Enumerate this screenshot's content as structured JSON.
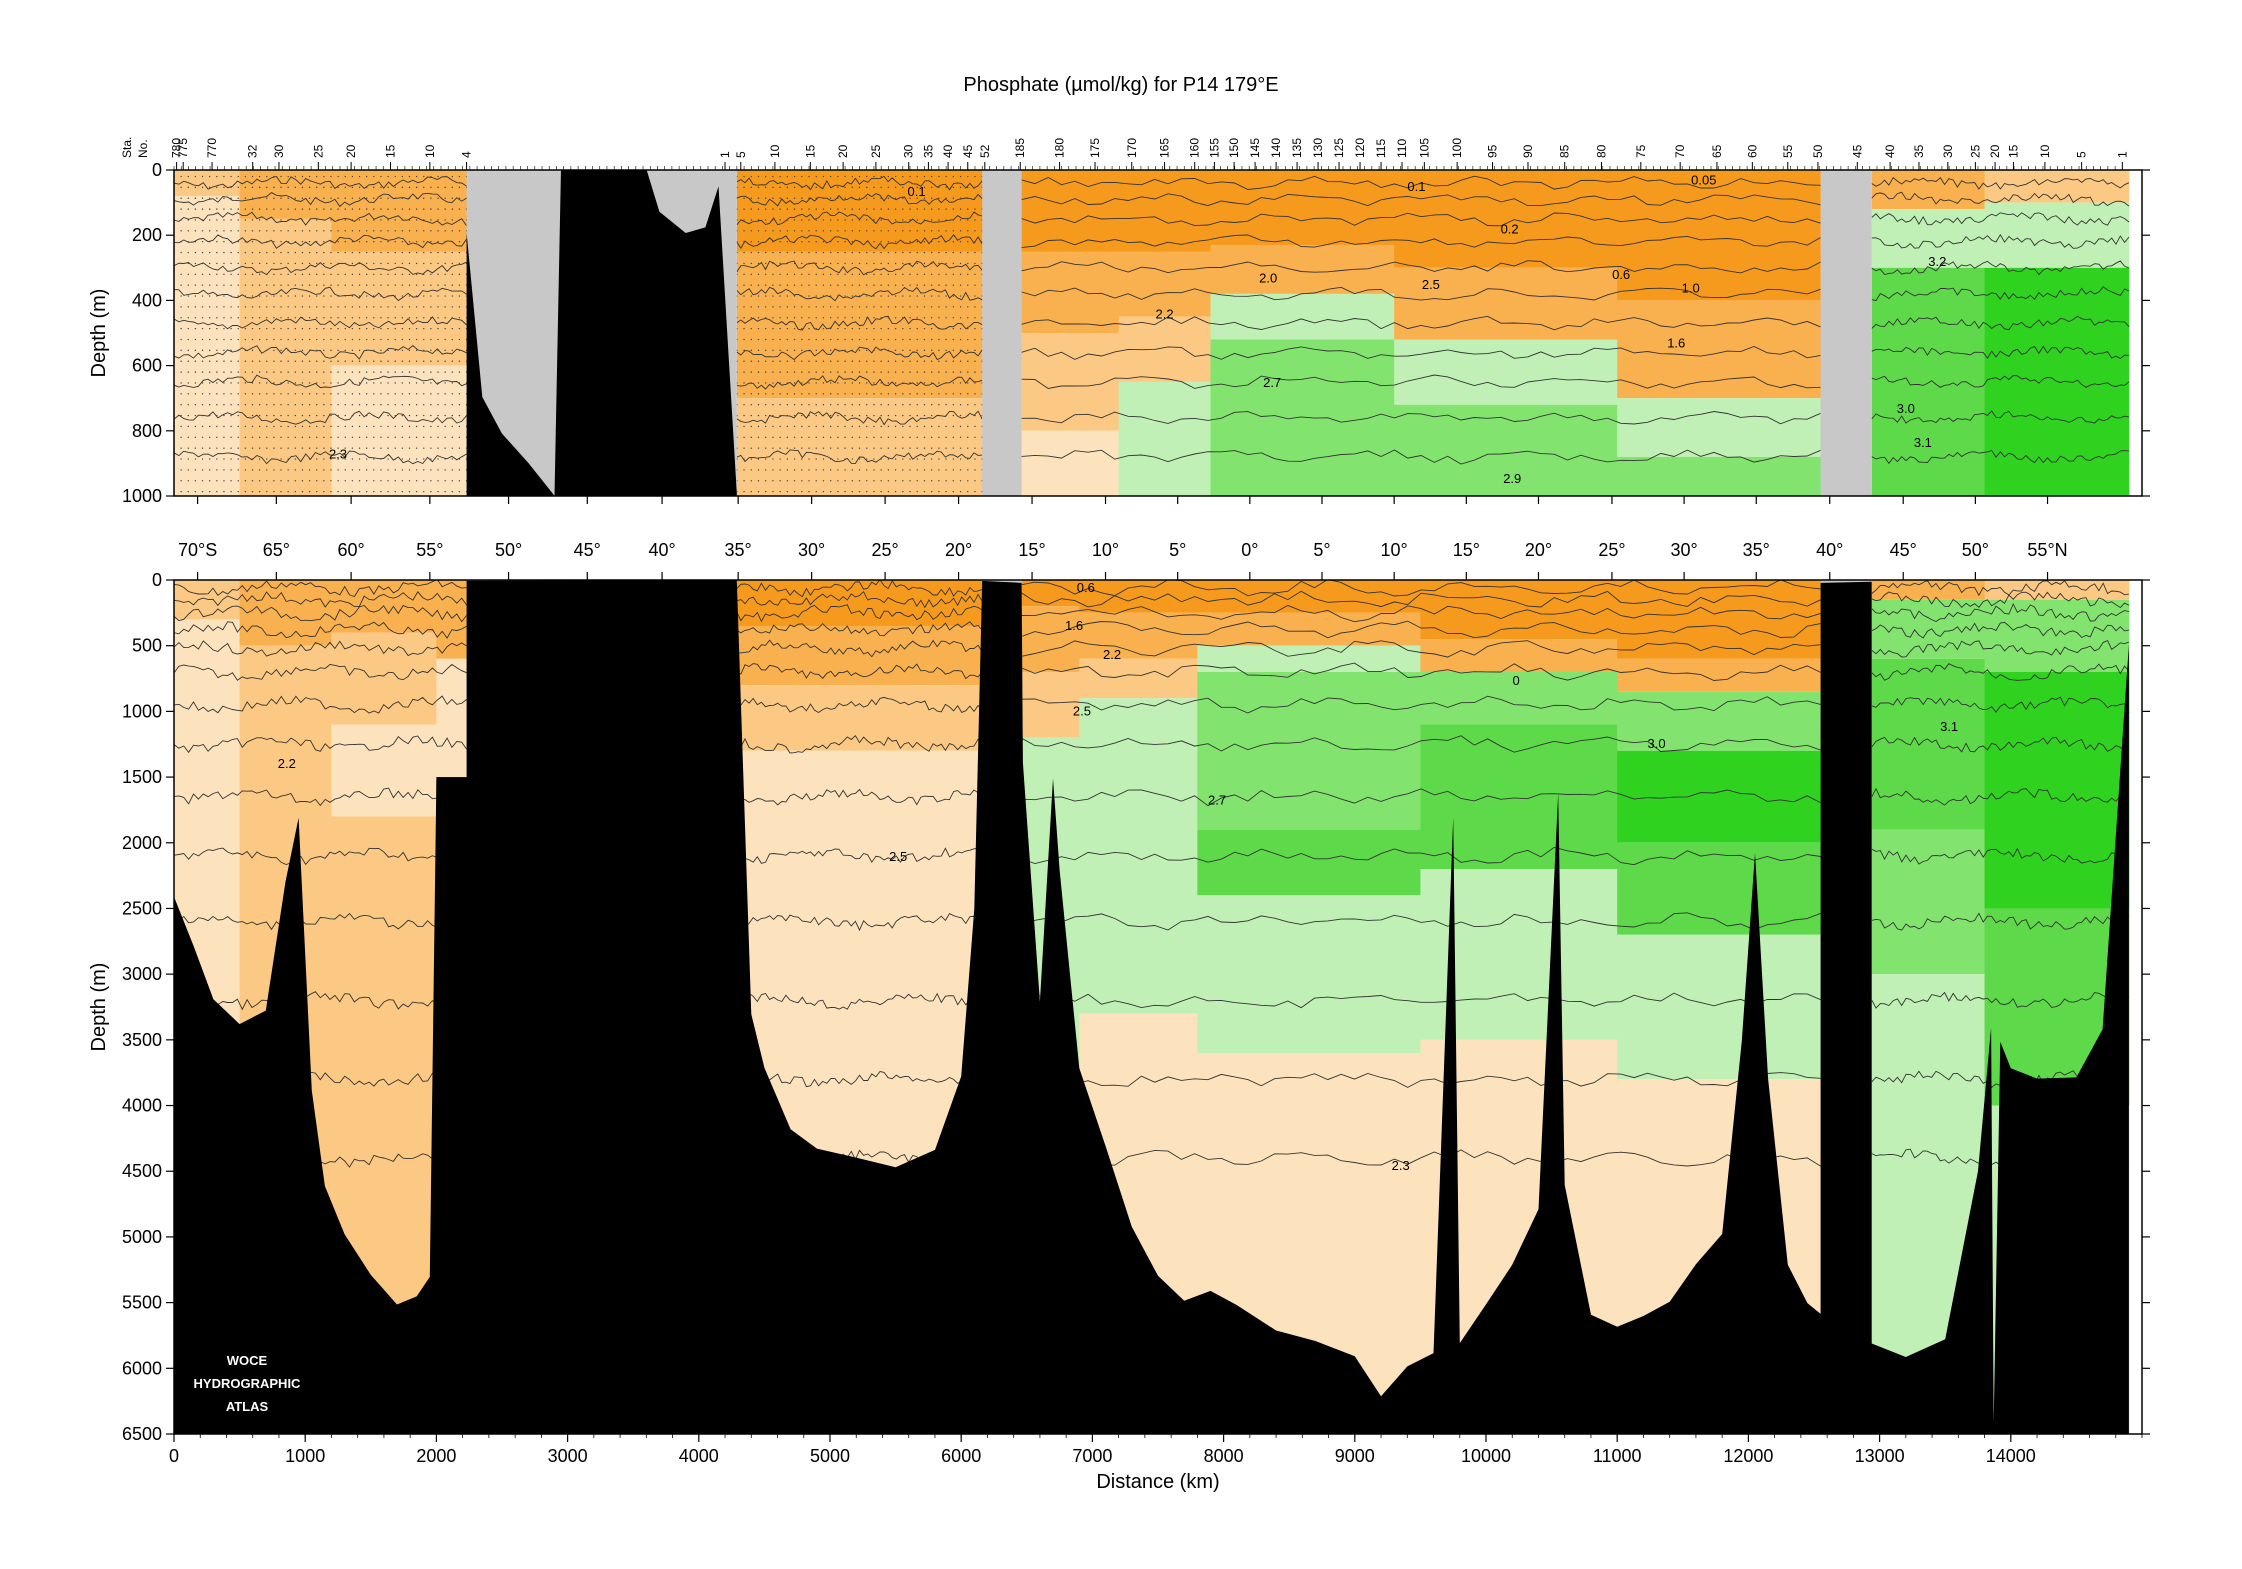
{
  "chart_data": {
    "type": "heatmap",
    "title": "Phosphate (µmol/kg) for P14 179°E",
    "station_axis_label": "Sta.\nNo.",
    "station_labels": [
      {
        "label": "780",
        "x": 20
      },
      {
        "label": "775",
        "x": 70
      },
      {
        "label": "770",
        "x": 290
      },
      {
        "label": "32",
        "x": 600
      },
      {
        "label": "30",
        "x": 800
      },
      {
        "label": "25",
        "x": 1100
      },
      {
        "label": "20",
        "x": 1350
      },
      {
        "label": "15",
        "x": 1650
      },
      {
        "label": "10",
        "x": 1950
      },
      {
        "label": "4",
        "x": 2230
      },
      {
        "label": "1",
        "x": 4200
      },
      {
        "label": "5",
        "x": 4320
      },
      {
        "label": "10",
        "x": 4580
      },
      {
        "label": "15",
        "x": 4850
      },
      {
        "label": "20",
        "x": 5100
      },
      {
        "label": "25",
        "x": 5350
      },
      {
        "label": "30",
        "x": 5600
      },
      {
        "label": "35",
        "x": 5750
      },
      {
        "label": "40",
        "x": 5900
      },
      {
        "label": "45",
        "x": 6050
      },
      {
        "label": "52",
        "x": 6180
      },
      {
        "label": "185",
        "x": 6450
      },
      {
        "label": "180",
        "x": 6750
      },
      {
        "label": "175",
        "x": 7020
      },
      {
        "label": "170",
        "x": 7300
      },
      {
        "label": "165",
        "x": 7550
      },
      {
        "label": "160",
        "x": 7780
      },
      {
        "label": "155",
        "x": 7930
      },
      {
        "label": "150",
        "x": 8080
      },
      {
        "label": "145",
        "x": 8240
      },
      {
        "label": "140",
        "x": 8400
      },
      {
        "label": "135",
        "x": 8560
      },
      {
        "label": "130",
        "x": 8720
      },
      {
        "label": "125",
        "x": 8880
      },
      {
        "label": "120",
        "x": 9040
      },
      {
        "label": "115",
        "x": 9200
      },
      {
        "label": "110",
        "x": 9360
      },
      {
        "label": "105",
        "x": 9530
      },
      {
        "label": "100",
        "x": 9780
      },
      {
        "label": "95",
        "x": 10050
      },
      {
        "label": "90",
        "x": 10320
      },
      {
        "label": "85",
        "x": 10600
      },
      {
        "label": "80",
        "x": 10880
      },
      {
        "label": "75",
        "x": 11180
      },
      {
        "label": "70",
        "x": 11480
      },
      {
        "label": "65",
        "x": 11760
      },
      {
        "label": "60",
        "x": 12030
      },
      {
        "label": "55",
        "x": 12300
      },
      {
        "label": "50",
        "x": 12530
      },
      {
        "label": "45",
        "x": 12830
      },
      {
        "label": "40",
        "x": 13080
      },
      {
        "label": "35",
        "x": 13300
      },
      {
        "label": "30",
        "x": 13520
      },
      {
        "label": "25",
        "x": 13730
      },
      {
        "label": "20",
        "x": 13880
      },
      {
        "label": "15",
        "x": 14020
      },
      {
        "label": "10",
        "x": 14260
      },
      {
        "label": "5",
        "x": 14540
      },
      {
        "label": "1",
        "x": 14850
      }
    ],
    "latitude_labels": [
      {
        "label": "70°S",
        "x": 180
      },
      {
        "label": "65°",
        "x": 780
      },
      {
        "label": "60°",
        "x": 1350
      },
      {
        "label": "55°",
        "x": 1950
      },
      {
        "label": "50°",
        "x": 2550
      },
      {
        "label": "45°",
        "x": 3150
      },
      {
        "label": "40°",
        "x": 3720
      },
      {
        "label": "35°",
        "x": 4300
      },
      {
        "label": "30°",
        "x": 4860
      },
      {
        "label": "25°",
        "x": 5420
      },
      {
        "label": "20°",
        "x": 5980
      },
      {
        "label": "15°",
        "x": 6540
      },
      {
        "label": "10°",
        "x": 7100
      },
      {
        "label": "5°",
        "x": 7650
      },
      {
        "label": "0°",
        "x": 8200
      },
      {
        "label": "5°",
        "x": 8750
      },
      {
        "label": "10°",
        "x": 9300
      },
      {
        "label": "15°",
        "x": 9850
      },
      {
        "label": "20°",
        "x": 10400
      },
      {
        "label": "25°",
        "x": 10960
      },
      {
        "label": "30°",
        "x": 11510
      },
      {
        "label": "35°",
        "x": 12060
      },
      {
        "label": "40°",
        "x": 12620
      },
      {
        "label": "45°",
        "x": 13180
      },
      {
        "label": "50°",
        "x": 13730
      },
      {
        "label": "55°N",
        "x": 14280
      }
    ],
    "upper_panel": {
      "ylabel": "Depth (m)",
      "ylim": [
        0,
        1000
      ],
      "yticks": [
        0,
        200,
        400,
        600,
        800,
        1000
      ]
    },
    "lower_panel": {
      "ylabel": "Depth (m)",
      "ylim": [
        0,
        6500
      ],
      "yticks": [
        0,
        500,
        1000,
        1500,
        2000,
        2500,
        3000,
        3500,
        4000,
        4500,
        5000,
        5500,
        6000,
        6500
      ]
    },
    "xlabel": "Distance (km)",
    "xlim": [
      0,
      15000
    ],
    "xticks": [
      0,
      1000,
      2000,
      3000,
      4000,
      5000,
      6000,
      7000,
      8000,
      9000,
      10000,
      11000,
      12000,
      13000,
      14000
    ],
    "gaps_km": [
      [
        6160,
        6460
      ],
      [
        12550,
        12940
      ]
    ],
    "land_km": [
      [
        2230,
        4290
      ]
    ],
    "contour_labels_upper": [
      {
        "text": "2.3",
        "x": 1250,
        "y": 885
      },
      {
        "text": "0.1",
        "x": 5660,
        "y": 80
      },
      {
        "text": "0.1",
        "x": 9470,
        "y": 65
      },
      {
        "text": "0.05",
        "x": 11660,
        "y": 45
      },
      {
        "text": "0.2",
        "x": 10180,
        "y": 195
      },
      {
        "text": "0.6",
        "x": 11030,
        "y": 335
      },
      {
        "text": "1.0",
        "x": 11560,
        "y": 375
      },
      {
        "text": "1.6",
        "x": 11450,
        "y": 545
      },
      {
        "text": "2.0",
        "x": 8340,
        "y": 345
      },
      {
        "text": "2.2",
        "x": 7550,
        "y": 455
      },
      {
        "text": "2.5",
        "x": 9580,
        "y": 365
      },
      {
        "text": "2.7",
        "x": 8370,
        "y": 665
      },
      {
        "text": "2.9",
        "x": 10200,
        "y": 960
      },
      {
        "text": "3.2",
        "x": 13440,
        "y": 295
      },
      {
        "text": "3.0",
        "x": 13200,
        "y": 745
      },
      {
        "text": "3.1",
        "x": 13330,
        "y": 850
      }
    ],
    "contour_labels_lower": [
      {
        "text": "2.2",
        "x": 860,
        "y": 1430
      },
      {
        "text": "2.5",
        "x": 5520,
        "y": 2140
      },
      {
        "text": "0.6",
        "x": 6950,
        "y": 90
      },
      {
        "text": "1.6",
        "x": 6860,
        "y": 380
      },
      {
        "text": "2.2",
        "x": 7150,
        "y": 600
      },
      {
        "text": "2.5",
        "x": 6920,
        "y": 1030
      },
      {
        "text": "2.7",
        "x": 7950,
        "y": 1710
      },
      {
        "text": "0",
        "x": 10230,
        "y": 800
      },
      {
        "text": "3.0",
        "x": 11300,
        "y": 1280
      },
      {
        "text": "3.1",
        "x": 13530,
        "y": 1150
      },
      {
        "text": "2.3",
        "x": 9350,
        "y": 4490
      }
    ],
    "colors": {
      "orange_dark": "#f69a1e",
      "orange_mid": "#f9b04e",
      "orange_light": "#fbc983",
      "cream": "#fce3bd",
      "green_light": "#c0f0b5",
      "green_mid": "#82e46f",
      "green_dark": "#5ed94a",
      "green_deep": "#2fd21e",
      "gap_gray": "#c8c8c8",
      "land_black": "#000000"
    },
    "logo": [
      "WOCE",
      "HYDROGRAPHIC",
      "ATLAS"
    ]
  }
}
